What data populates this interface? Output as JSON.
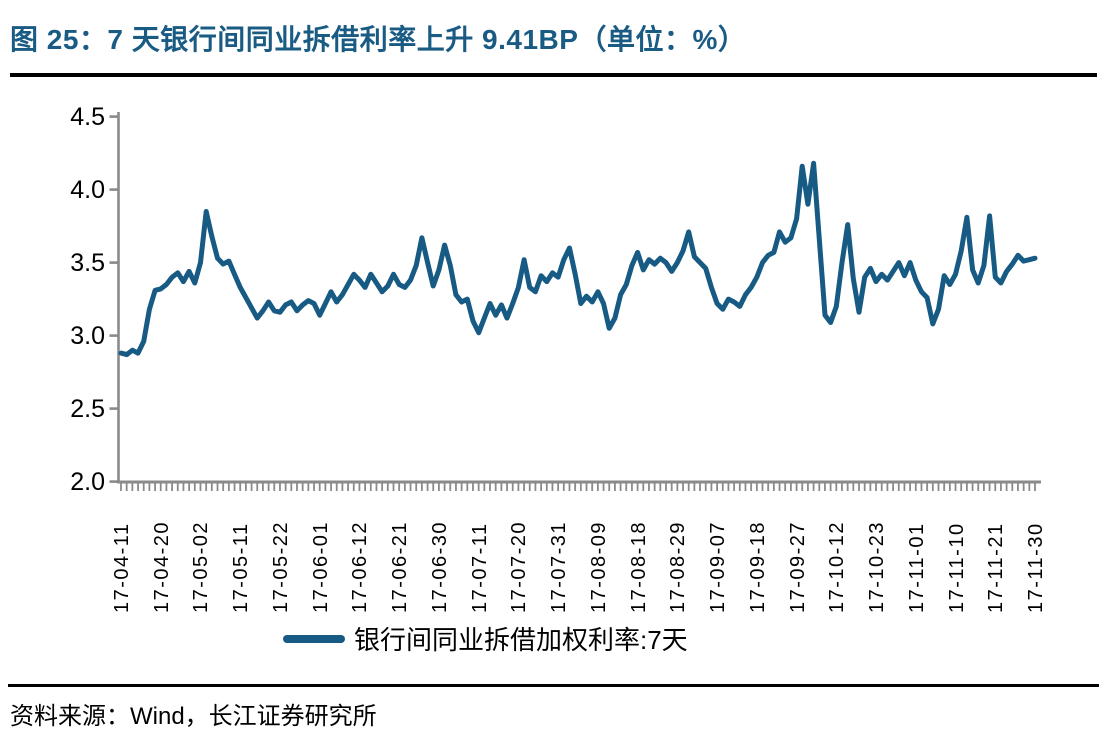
{
  "figure": {
    "title": "图 25：7 天银行间同业拆借利率上升 9.41BP（单位：%）",
    "source": "资料来源：Wind，长江证券研究所",
    "legend": "银行间同业拆借加权利率:7天"
  },
  "colors": {
    "accent_blue": "#175A84",
    "title_blue": "#1A5B84",
    "axis_gray": "#8A8A8A",
    "text_black": "#000000"
  },
  "chart_data": {
    "type": "line",
    "title": "7 天银行间同业拆借利率上升 9.41BP（单位：%）",
    "unit": "%",
    "ylabel": "",
    "xlabel": "",
    "ylim": [
      2.0,
      4.5
    ],
    "y_ticks": [
      4.5,
      4.0,
      3.5,
      3.0,
      2.5,
      2.0
    ],
    "grid": false,
    "legend_position": "bottom",
    "points_per_label": 7,
    "x_tick_labels": [
      "17-04-11",
      "17-04-20",
      "17-05-02",
      "17-05-11",
      "17-05-22",
      "17-06-01",
      "17-06-12",
      "17-06-21",
      "17-06-30",
      "17-07-11",
      "17-07-20",
      "17-07-31",
      "17-08-09",
      "17-08-18",
      "17-08-29",
      "17-09-07",
      "17-09-18",
      "17-09-27",
      "17-10-12",
      "17-10-23",
      "17-11-01",
      "17-11-10",
      "17-11-21",
      "17-11-30"
    ],
    "series": [
      {
        "name": "银行间同业拆借加权利率:7天",
        "values": [
          2.88,
          2.87,
          2.9,
          2.88,
          2.96,
          3.18,
          3.31,
          3.32,
          3.35,
          3.4,
          3.43,
          3.37,
          3.44,
          3.36,
          3.5,
          3.85,
          3.68,
          3.53,
          3.49,
          3.51,
          3.42,
          3.33,
          3.26,
          3.19,
          3.12,
          3.17,
          3.23,
          3.17,
          3.16,
          3.21,
          3.23,
          3.17,
          3.21,
          3.24,
          3.22,
          3.14,
          3.22,
          3.3,
          3.23,
          3.28,
          3.35,
          3.42,
          3.38,
          3.33,
          3.42,
          3.36,
          3.3,
          3.34,
          3.42,
          3.35,
          3.33,
          3.38,
          3.48,
          3.67,
          3.5,
          3.34,
          3.45,
          3.62,
          3.48,
          3.28,
          3.23,
          3.25,
          3.1,
          3.02,
          3.12,
          3.22,
          3.14,
          3.21,
          3.12,
          3.22,
          3.33,
          3.52,
          3.33,
          3.3,
          3.41,
          3.37,
          3.43,
          3.4,
          3.52,
          3.6,
          3.42,
          3.22,
          3.27,
          3.23,
          3.3,
          3.22,
          3.05,
          3.12,
          3.28,
          3.35,
          3.48,
          3.57,
          3.45,
          3.52,
          3.49,
          3.53,
          3.5,
          3.44,
          3.5,
          3.58,
          3.71,
          3.54,
          3.5,
          3.46,
          3.33,
          3.22,
          3.18,
          3.25,
          3.23,
          3.2,
          3.28,
          3.33,
          3.4,
          3.5,
          3.55,
          3.57,
          3.71,
          3.64,
          3.67,
          3.8,
          4.16,
          3.9,
          4.18,
          3.66,
          3.14,
          3.09,
          3.2,
          3.5,
          3.76,
          3.39,
          3.16,
          3.4,
          3.46,
          3.37,
          3.42,
          3.38,
          3.44,
          3.5,
          3.41,
          3.5,
          3.38,
          3.3,
          3.26,
          3.08,
          3.18,
          3.41,
          3.35,
          3.42,
          3.58,
          3.81,
          3.45,
          3.36,
          3.48,
          3.82,
          3.4,
          3.36,
          3.44,
          3.49,
          3.55,
          3.51,
          3.52,
          3.53
        ]
      }
    ]
  }
}
